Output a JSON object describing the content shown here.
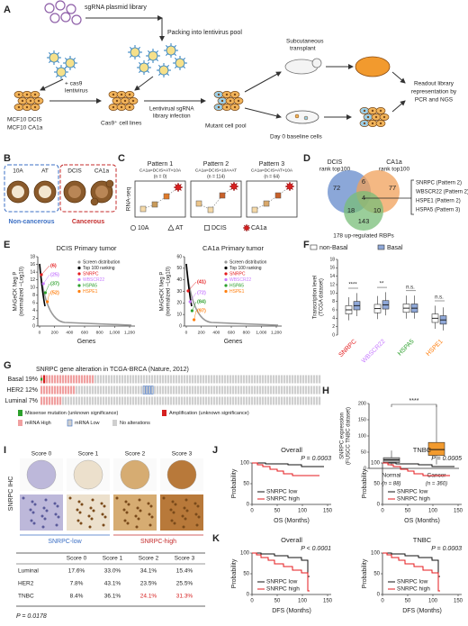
{
  "panel_labels": [
    "A",
    "B",
    "C",
    "D",
    "E",
    "F",
    "G",
    "H",
    "I",
    "J",
    "K"
  ],
  "a": {
    "library": "sgRNA plasmid library",
    "packing": "Packing into lentivirus pool",
    "cas9": [
      "+ cas9",
      "lentivirus"
    ],
    "lines": [
      "MCF10 DCIS",
      "MCF10 CA1a"
    ],
    "infection": [
      "Lentivirual sgRNA",
      "library infection"
    ],
    "cas9_cells": "Cas9⁺ cell lines",
    "transplant": [
      "Subcutaneous",
      "transplant"
    ],
    "mutant": "Mutant cell pool",
    "baseline": "Day 0 baseline cells",
    "readout": [
      "Readout library",
      "representation by",
      "PCR and NGS"
    ]
  },
  "b": {
    "labels": [
      "10A",
      "AT",
      "DCIS",
      "CA1a"
    ],
    "groups": [
      "Non-cancerous",
      "Cancerous"
    ]
  },
  "c": {
    "ylabel": "RNA-seq",
    "patterns": [
      {
        "name": "Pattern 1",
        "rule": "CA1a>DCIS>AT>10A",
        "n": "(n = 0)"
      },
      {
        "name": "Pattern 2",
        "rule": "CA1a>DCIS>10A>AT",
        "n": "(n = 114)"
      },
      {
        "name": "Pattern 3",
        "rule": "CA1a>DCIS>AT>10A",
        "n": "(n = 64)"
      }
    ],
    "legend": [
      "10A",
      "AT",
      "DCIS",
      "CA1a"
    ]
  },
  "d": {
    "sets": [
      [
        "DCIS",
        "rank top100"
      ],
      [
        "CA1a",
        "rank top100"
      ]
    ],
    "counts": {
      "dcis_only": 72,
      "dcis_ca1a": 6,
      "ca1a_only": 77,
      "all": 4,
      "dcis_rbp": 18,
      "ca1a_rbp": 10,
      "rbp_only": 143
    },
    "rbps": "178 up-regulated RBPs",
    "genes": [
      "SNRPC (Pattern 2)",
      "WBSCR22 (Pattern 2)",
      "HSPE1 (Pattern 2)",
      "HSPA5 (Pattern 3)"
    ]
  },
  "e": {
    "ylabel": [
      "MAGeCK Neg P",
      "(normalized –Log10)"
    ],
    "xlabel": "Genes",
    "xticks": [
      0,
      200,
      400,
      600,
      800,
      "1,000",
      "1,200"
    ],
    "legend": [
      "Screen distribution",
      "Top 100 ranking",
      "SNRPC",
      "WBSCR22",
      "HSPA5",
      "HSPE1"
    ],
    "plots": [
      {
        "title": "DCIS Primary tumor",
        "yticks": [
          0,
          2,
          4,
          6,
          8,
          10,
          12,
          14,
          16,
          18
        ],
        "ranks": [
          "(6)",
          "(25)",
          "(37)",
          "(52)"
        ]
      },
      {
        "title": "CA1a Primary tumor",
        "yticks": [
          0,
          10,
          20,
          30,
          40,
          50,
          60
        ],
        "ranks": [
          "(41)",
          "(72)",
          "(84)",
          "(97)"
        ]
      }
    ]
  },
  "f": {
    "legend": [
      "non-Basal",
      "Basal"
    ],
    "ylabel": [
      "Transcription level",
      "(TCGA dataset)"
    ],
    "yticks": [
      0,
      2,
      4,
      6,
      8,
      10,
      12,
      14,
      16,
      18
    ],
    "genes": [
      "SNRPC",
      "WBSCR22",
      "HSPA5",
      "HSPE1"
    ],
    "sig": [
      "****",
      "**",
      "n.s.",
      "n.s."
    ]
  },
  "g": {
    "title": "SNRPC gene alteration in TCGA-BRCA (Nature, 2012)",
    "rows": [
      "Basal 19%",
      "HER2 12%",
      "Luminal 7%"
    ],
    "legend": [
      "Missense mutation (unknown significance)",
      "Amplification (unknown significance)",
      "mRNA High",
      "mRNA Low",
      "No alterations"
    ]
  },
  "h": {
    "ylabel": [
      "SNRPC expression",
      "(FUSCC TNBC dataset)"
    ],
    "yticks": [
      0,
      50,
      100,
      150,
      200
    ],
    "groups": [
      [
        "Normal",
        "(n = 88)"
      ],
      [
        "Cancer",
        "(n = 360)"
      ]
    ],
    "sig": "****"
  },
  "i": {
    "scores": [
      "Score 0",
      "Score 1",
      "Score 2",
      "Score 3"
    ],
    "ylabel": "SNRPC IHC",
    "low": "SNRPC-low",
    "high": "SNRPC-high",
    "table": {
      "header": [
        "Score 0",
        "Score 1",
        "Score 2",
        "Score 3"
      ],
      "rows": [
        [
          "Luminal",
          "17.6%",
          "33.0%",
          "34.1%",
          "15.4%"
        ],
        [
          "HER2",
          "7.8%",
          "43.1%",
          "23.5%",
          "25.5%"
        ],
        [
          "TNBC",
          "8.4%",
          "36.1%",
          "24.1%",
          "31.3%"
        ]
      ]
    },
    "p": "P = 0.0178"
  },
  "j": {
    "plots": [
      {
        "title": "Overall",
        "p": "P = 0.0003"
      },
      {
        "title": "TNBC",
        "p": "P = 0.0005"
      }
    ],
    "ylabel": "Probability",
    "yticks": [
      0,
      50,
      100
    ],
    "xticks": [
      0,
      50,
      100,
      150
    ],
    "xlabel": "OS (Months)",
    "legend": [
      "SNRPC low",
      "SNRPC high"
    ]
  },
  "k": {
    "plots": [
      {
        "title": "Overall",
        "p": "P < 0.0001"
      },
      {
        "title": "TNBC",
        "p": "P = 0.0003"
      }
    ],
    "ylabel": "Probability",
    "yticks": [
      0,
      50,
      100
    ],
    "xticks": [
      0,
      50,
      100,
      150
    ],
    "xlabel": "DFS (Months)",
    "legend": [
      "SNRPC low",
      "SNRPC high"
    ]
  }
}
